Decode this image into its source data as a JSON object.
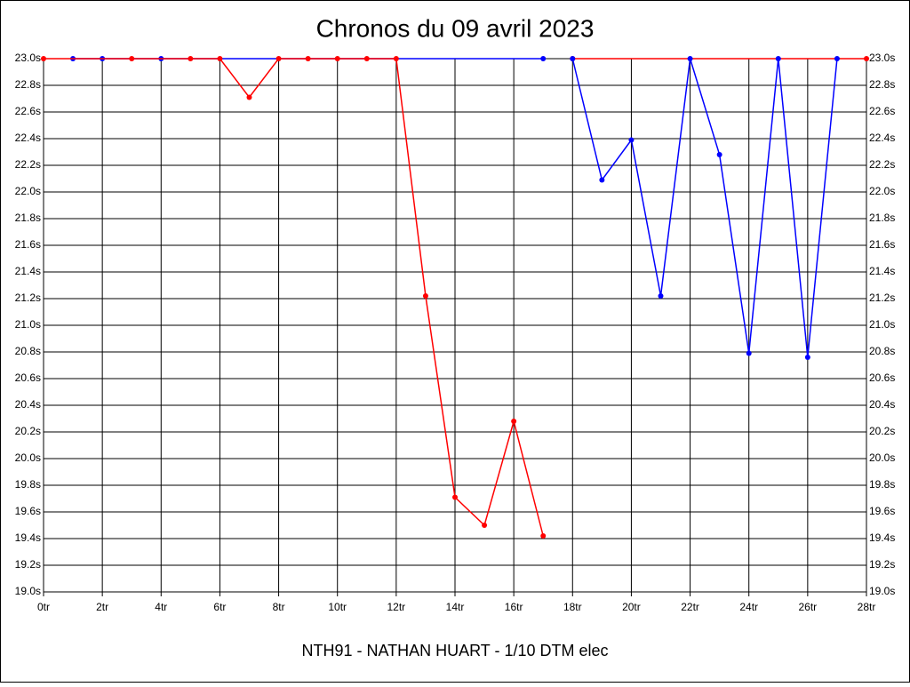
{
  "chart_data": {
    "type": "line",
    "title": "Chronos du 09 avril 2023",
    "subtitle": "NTH91 - NATHAN HUART - 1/10 DTM elec",
    "xlim": [
      0,
      28
    ],
    "xticks": [
      {
        "value": 0,
        "label": "0tr"
      },
      {
        "value": 2,
        "label": "2tr"
      },
      {
        "value": 4,
        "label": "4tr"
      },
      {
        "value": 6,
        "label": "6tr"
      },
      {
        "value": 8,
        "label": "8tr"
      },
      {
        "value": 10,
        "label": "10tr"
      },
      {
        "value": 12,
        "label": "12tr"
      },
      {
        "value": 14,
        "label": "14tr"
      },
      {
        "value": 16,
        "label": "16tr"
      },
      {
        "value": 18,
        "label": "18tr"
      },
      {
        "value": 20,
        "label": "20tr"
      },
      {
        "value": 22,
        "label": "22tr"
      },
      {
        "value": 24,
        "label": "24tr"
      },
      {
        "value": 26,
        "label": "26tr"
      },
      {
        "value": 28,
        "label": "28tr"
      }
    ],
    "ylim": [
      19.0,
      23.0
    ],
    "yticks": [
      {
        "value": 19.0,
        "label": "19.0s"
      },
      {
        "value": 19.2,
        "label": "19.2s"
      },
      {
        "value": 19.4,
        "label": "19.4s"
      },
      {
        "value": 19.6,
        "label": "19.6s"
      },
      {
        "value": 19.8,
        "label": "19.8s"
      },
      {
        "value": 20.0,
        "label": "20.0s"
      },
      {
        "value": 20.2,
        "label": "20.2s"
      },
      {
        "value": 20.4,
        "label": "20.4s"
      },
      {
        "value": 20.6,
        "label": "20.6s"
      },
      {
        "value": 20.8,
        "label": "20.8s"
      },
      {
        "value": 21.0,
        "label": "21.0s"
      },
      {
        "value": 21.2,
        "label": "21.2s"
      },
      {
        "value": 21.4,
        "label": "21.4s"
      },
      {
        "value": 21.6,
        "label": "21.6s"
      },
      {
        "value": 21.8,
        "label": "21.8s"
      },
      {
        "value": 22.0,
        "label": "22.0s"
      },
      {
        "value": 22.2,
        "label": "22.2s"
      },
      {
        "value": 22.4,
        "label": "22.4s"
      },
      {
        "value": 22.6,
        "label": "22.6s"
      },
      {
        "value": 22.8,
        "label": "22.8s"
      },
      {
        "value": 23.0,
        "label": "23.0s"
      }
    ],
    "grid": true,
    "series": [
      {
        "color": "#0000ff",
        "x": [
          1,
          2,
          4,
          17
        ],
        "values": [
          23.0,
          23.0,
          23.0,
          23.0
        ]
      },
      {
        "color": "#ff0000",
        "x": [
          0,
          3,
          5,
          6,
          7,
          8,
          9,
          10,
          11,
          12,
          13,
          14,
          15,
          16,
          17
        ],
        "values": [
          23.0,
          23.0,
          23.0,
          23.0,
          22.71,
          23.0,
          23.0,
          23.0,
          23.0,
          23.0,
          21.22,
          19.71,
          19.5,
          20.28,
          19.42
        ]
      },
      {
        "color": "#ff0000",
        "x": [
          18,
          28
        ],
        "values": [
          23.0,
          23.0
        ]
      },
      {
        "color": "#0000ff",
        "x": [
          18,
          19,
          20,
          21,
          22,
          23,
          24,
          25,
          26,
          27
        ],
        "values": [
          23.0,
          22.09,
          22.39,
          21.22,
          23.0,
          22.28,
          20.79,
          23.0,
          20.76,
          23.0
        ]
      }
    ]
  }
}
